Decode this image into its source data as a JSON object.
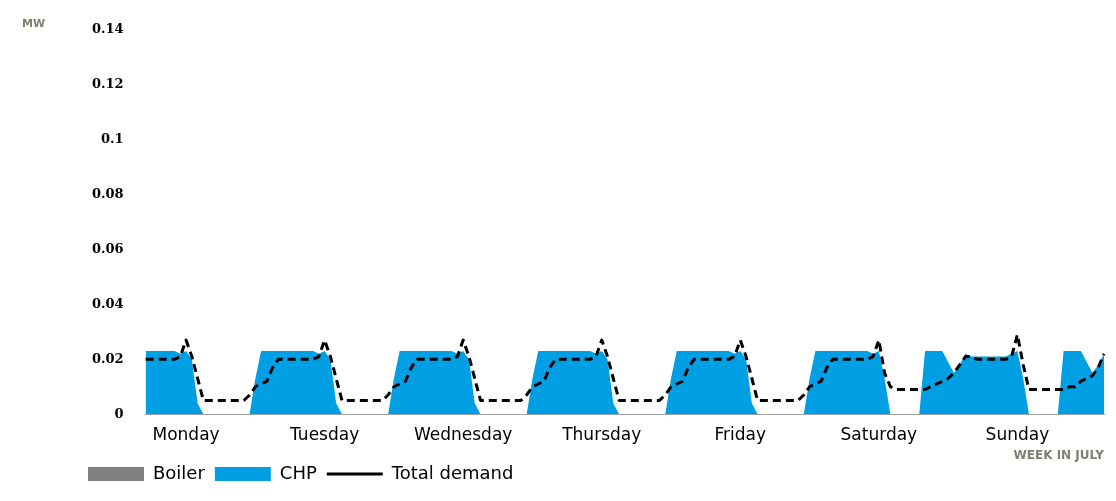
{
  "chart_data": {
    "type": "area",
    "xlabel": "WEEK IN JULY",
    "ylabel": "MW",
    "categories": [
      null,
      null,
      null,
      null,
      null,
      null,
      null,
      "Monday",
      null,
      null,
      null,
      null,
      null,
      null,
      null,
      null,
      null,
      null,
      null,
      null,
      null,
      null,
      null,
      null,
      null,
      null,
      null,
      null,
      null,
      null,
      null,
      "Tuesday",
      null,
      null,
      null,
      null,
      null,
      null,
      null,
      null,
      null,
      null,
      null,
      null,
      null,
      null,
      null,
      null,
      null,
      null,
      null,
      null,
      null,
      null,
      null,
      "Wednesday",
      null,
      null,
      null,
      null,
      null,
      null,
      null,
      null,
      null,
      null,
      null,
      null,
      null,
      null,
      null,
      null,
      null,
      null,
      null,
      null,
      null,
      null,
      null,
      "Thursday",
      null,
      null,
      null,
      null,
      null,
      null,
      null,
      null,
      null,
      null,
      null,
      null,
      null,
      null,
      null,
      null,
      null,
      null,
      null,
      null,
      null,
      null,
      null,
      "Friday",
      null,
      null,
      null,
      null,
      null,
      null,
      null,
      null,
      null,
      null,
      null,
      null,
      null,
      null,
      null,
      null,
      null,
      null,
      null,
      null,
      null,
      null,
      null,
      "Saturday",
      null,
      null,
      null,
      null,
      null,
      null,
      null,
      null,
      null,
      null,
      null,
      null,
      null,
      null,
      null,
      null,
      null,
      null,
      null,
      null,
      null,
      null,
      null,
      "Sunday",
      null,
      null,
      null,
      null,
      null,
      null,
      null,
      null,
      null,
      null,
      null,
      null,
      null,
      null,
      null
    ],
    "ylim": [
      0,
      0.14
    ],
    "yticks": [
      0,
      0.02,
      0.04,
      0.06,
      0.08,
      0.1,
      0.12,
      0.14
    ],
    "legend": "bottom left",
    "series": [
      {
        "name": "Boiler",
        "type": "area",
        "color": "#808080",
        "values": [
          null,
          null,
          null,
          null,
          null,
          null,
          null,
          null,
          null,
          null,
          null,
          null,
          null,
          null,
          null,
          null,
          null,
          null,
          null,
          null,
          null,
          null,
          null,
          null,
          null,
          null,
          null,
          null,
          null,
          null,
          null,
          null,
          null,
          null,
          null,
          null,
          null,
          null,
          null,
          null,
          null,
          null,
          null,
          null,
          null,
          null,
          null,
          null,
          null,
          null,
          null,
          null,
          null,
          null,
          null,
          null,
          null,
          null,
          null,
          null,
          null,
          null,
          null,
          null,
          null,
          null,
          null,
          null,
          null,
          null,
          null,
          null,
          null,
          null,
          null,
          null,
          null,
          null,
          null,
          null,
          null,
          null,
          null,
          null,
          null,
          null,
          null,
          null,
          null,
          null,
          null,
          null,
          null,
          null,
          null,
          null,
          null,
          null,
          null,
          null,
          null,
          null,
          null,
          null,
          null,
          null,
          null,
          null,
          null,
          null,
          null,
          null,
          null,
          null,
          null,
          null,
          null,
          null,
          null,
          null,
          null,
          null,
          null,
          null,
          null,
          null,
          null,
          null,
          null,
          null,
          null,
          null,
          null,
          null,
          null,
          null,
          null,
          null,
          null,
          null,
          null,
          null,
          null,
          null,
          null,
          null,
          null,
          null,
          null,
          null,
          null,
          null,
          null,
          null,
          null,
          null,
          null,
          null,
          null,
          null,
          null,
          null,
          null,
          null,
          null,
          null,
          null
        ]
      },
      {
        "name": "CHP",
        "type": "area",
        "color": "#009fe3",
        "values": [
          0.023,
          0.023,
          0.023,
          0.023,
          0.023,
          0.023,
          0.022,
          0.023,
          0.02,
          0.004,
          0,
          0,
          0,
          0,
          0,
          0,
          0,
          0,
          0,
          0.013,
          0.023,
          0.023,
          0.023,
          0.023,
          0.023,
          0.023,
          0.023,
          0.023,
          0.023,
          0.023,
          0.022,
          0.023,
          0.02,
          0.004,
          0,
          0,
          0,
          0,
          0,
          0,
          0,
          0,
          0,
          0.013,
          0.023,
          0.023,
          0.023,
          0.023,
          0.023,
          0.023,
          0.023,
          0.023,
          0.023,
          0.023,
          0.022,
          0.023,
          0.02,
          0.004,
          0,
          0,
          0,
          0,
          0,
          0,
          0,
          0,
          0,
          0.013,
          0.023,
          0.023,
          0.023,
          0.023,
          0.023,
          0.023,
          0.023,
          0.023,
          0.023,
          0.023,
          0.022,
          0.023,
          0.02,
          0.004,
          0,
          0,
          0,
          0,
          0,
          0,
          0,
          0,
          0,
          0.013,
          0.023,
          0.023,
          0.023,
          0.023,
          0.023,
          0.023,
          0.023,
          0.023,
          0.023,
          0.023,
          0.022,
          0.023,
          0.02,
          0.004,
          0,
          0,
          0,
          0,
          0,
          0,
          0,
          0,
          0,
          0.013,
          0.023,
          0.023,
          0.023,
          0.023,
          0.023,
          0.023,
          0.023,
          0.023,
          0.023,
          0.023,
          0.022,
          0.023,
          0.013,
          0,
          0,
          0,
          0,
          0,
          0,
          0.023,
          0.023,
          0.023,
          0.023,
          0.019,
          0.015,
          0.018,
          0.022,
          0.021,
          0.021,
          0.021,
          0.021,
          0.021,
          0.021,
          0.021,
          0.022,
          0.023,
          0.013,
          0,
          0,
          0,
          0,
          0,
          0,
          0.023,
          0.023,
          0.023,
          0.023,
          0.019,
          0.015,
          0.018,
          0.022
        ]
      },
      {
        "name": "Total demand",
        "type": "line",
        "line_style": "dashed",
        "color": "#000000",
        "values": [
          0.02,
          0.02,
          0.02,
          0.02,
          0.02,
          0.02,
          0.021,
          0.027,
          0.021,
          0.013,
          0.005,
          0.005,
          0.005,
          0.005,
          0.005,
          0.005,
          0.005,
          0.005,
          0.007,
          0.01,
          0.011,
          0.012,
          0.017,
          0.02,
          0.02,
          0.02,
          0.02,
          0.02,
          0.02,
          0.02,
          0.021,
          0.027,
          0.021,
          0.013,
          0.005,
          0.005,
          0.005,
          0.005,
          0.005,
          0.005,
          0.005,
          0.005,
          0.007,
          0.01,
          0.011,
          0.012,
          0.017,
          0.02,
          0.02,
          0.02,
          0.02,
          0.02,
          0.02,
          0.02,
          0.021,
          0.027,
          0.021,
          0.013,
          0.005,
          0.005,
          0.005,
          0.005,
          0.005,
          0.005,
          0.005,
          0.005,
          0.007,
          0.01,
          0.011,
          0.012,
          0.017,
          0.02,
          0.02,
          0.02,
          0.02,
          0.02,
          0.02,
          0.02,
          0.021,
          0.027,
          0.021,
          0.013,
          0.005,
          0.005,
          0.005,
          0.005,
          0.005,
          0.005,
          0.005,
          0.005,
          0.007,
          0.01,
          0.011,
          0.012,
          0.017,
          0.02,
          0.02,
          0.02,
          0.02,
          0.02,
          0.02,
          0.02,
          0.021,
          0.027,
          0.021,
          0.013,
          0.005,
          0.005,
          0.005,
          0.005,
          0.005,
          0.005,
          0.005,
          0.005,
          0.007,
          0.01,
          0.011,
          0.012,
          0.017,
          0.02,
          0.02,
          0.02,
          0.02,
          0.02,
          0.02,
          0.02,
          0.021,
          0.027,
          0.015,
          0.01,
          0.009,
          0.009,
          0.009,
          0.009,
          0.009,
          0.009,
          0.01,
          0.011,
          0.012,
          0.013,
          0.015,
          0.018,
          0.021,
          0.021,
          0.02,
          0.02,
          0.02,
          0.02,
          0.02,
          0.02,
          0.021,
          0.029,
          0.018,
          0.009,
          0.009,
          0.009,
          0.009,
          0.009,
          0.009,
          0.009,
          0.01,
          0.01,
          0.012,
          0.013,
          0.014,
          0.017,
          0.022
        ]
      }
    ]
  }
}
